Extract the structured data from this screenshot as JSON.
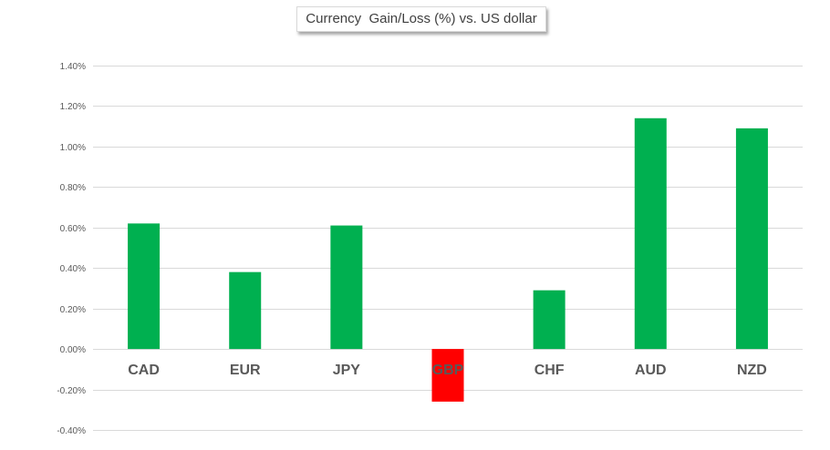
{
  "chart_data": {
    "type": "bar",
    "title": "Currency  Gain/Loss (%) vs. US dollar",
    "xlabel": "",
    "ylabel": "",
    "categories": [
      "CAD",
      "EUR",
      "JPY",
      "GBP",
      "CHF",
      "AUD",
      "NZD"
    ],
    "values": [
      0.62,
      0.38,
      0.61,
      -0.26,
      0.29,
      1.14,
      1.09
    ],
    "ylim": [
      -0.4,
      1.4
    ],
    "yticks": [
      "1.40%",
      "1.20%",
      "1.00%",
      "0.80%",
      "0.60%",
      "0.40%",
      "0.20%",
      "0.00%",
      "-0.20%",
      "-0.40%"
    ],
    "grid": true,
    "legend": "none",
    "colors": {
      "positive": "#00b050",
      "negative": "#ff0000",
      "gridline": "#d9d9d9",
      "text": "#595959"
    }
  }
}
